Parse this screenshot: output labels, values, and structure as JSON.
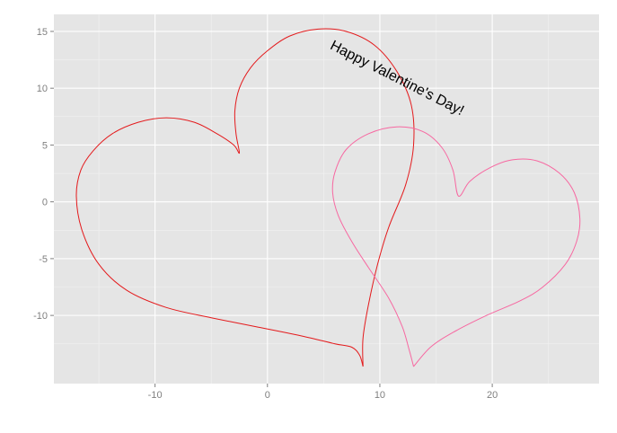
{
  "chart_data": {
    "type": "line",
    "title": "",
    "xlabel": "",
    "ylabel": "",
    "xlim": [
      -19,
      29.5
    ],
    "ylim": [
      -16,
      16.5
    ],
    "xticks": [
      -10,
      0,
      10,
      20
    ],
    "yticks": [
      15,
      10,
      5,
      0,
      -5,
      -10
    ],
    "grid": true,
    "colors": {
      "panel": "#e5e5e5",
      "grid_major": "#ffffff",
      "grid_minor": "#f2f2f2",
      "tick_text": "#7f7f7f"
    },
    "series": [
      {
        "color": "#e41a1c",
        "points": [
          [
            8.5,
            -14.5
          ],
          [
            8.2,
            -13.5
          ],
          [
            7.5,
            -12.8
          ],
          [
            6,
            -12.5
          ],
          [
            3,
            -11.8
          ],
          [
            -1,
            -11
          ],
          [
            -5,
            -10.2
          ],
          [
            -9,
            -9.3
          ],
          [
            -12.5,
            -7.8
          ],
          [
            -15,
            -5.5
          ],
          [
            -16.5,
            -2.5
          ],
          [
            -17,
            0.5
          ],
          [
            -16.6,
            2.8
          ],
          [
            -15.5,
            4.5
          ],
          [
            -13.8,
            6
          ],
          [
            -11.5,
            7
          ],
          [
            -9,
            7.4
          ],
          [
            -6.5,
            7
          ],
          [
            -4.5,
            6
          ],
          [
            -3,
            5
          ],
          [
            -2.5,
            4.3
          ],
          [
            -2.8,
            6
          ],
          [
            -2.9,
            8
          ],
          [
            -2.5,
            10
          ],
          [
            -1.5,
            11.8
          ],
          [
            0,
            13.3
          ],
          [
            2,
            14.6
          ],
          [
            4.5,
            15.2
          ],
          [
            7,
            15
          ],
          [
            9.5,
            13.8
          ],
          [
            11.5,
            11.5
          ],
          [
            12.8,
            8.5
          ],
          [
            13,
            5
          ],
          [
            12.3,
            1.5
          ],
          [
            10.8,
            -2.2
          ],
          [
            9.8,
            -5.5
          ],
          [
            9,
            -9
          ],
          [
            8.5,
            -12
          ],
          [
            8.5,
            -14.5
          ]
        ]
      },
      {
        "color": "#f768a1",
        "points": [
          [
            13,
            -14.5
          ],
          [
            14.5,
            -12.8
          ],
          [
            16.5,
            -11.5
          ],
          [
            19.5,
            -10
          ],
          [
            22.5,
            -8.7
          ],
          [
            24.5,
            -7.5
          ],
          [
            26.5,
            -5.5
          ],
          [
            27.5,
            -3.5
          ],
          [
            27.8,
            -1.5
          ],
          [
            27.3,
            0.8
          ],
          [
            26,
            2.5
          ],
          [
            24,
            3.6
          ],
          [
            21.8,
            3.7
          ],
          [
            19.8,
            3
          ],
          [
            18,
            1.8
          ],
          [
            17,
            0.5
          ],
          [
            16.5,
            2.8
          ],
          [
            15.5,
            4.8
          ],
          [
            13.8,
            6.2
          ],
          [
            11.5,
            6.6
          ],
          [
            9,
            6
          ],
          [
            7,
            4.6
          ],
          [
            6,
            2.6
          ],
          [
            5.8,
            0.8
          ],
          [
            6.3,
            -1.2
          ],
          [
            7.5,
            -3.5
          ],
          [
            9,
            -5.8
          ],
          [
            10.8,
            -8.5
          ],
          [
            12,
            -11
          ],
          [
            12.6,
            -13
          ],
          [
            13,
            -14.5
          ]
        ]
      }
    ],
    "annotations": [
      {
        "text": "Happy Valentine's Day!",
        "x": 5.5,
        "y": 13.5,
        "angle": -27
      }
    ]
  }
}
